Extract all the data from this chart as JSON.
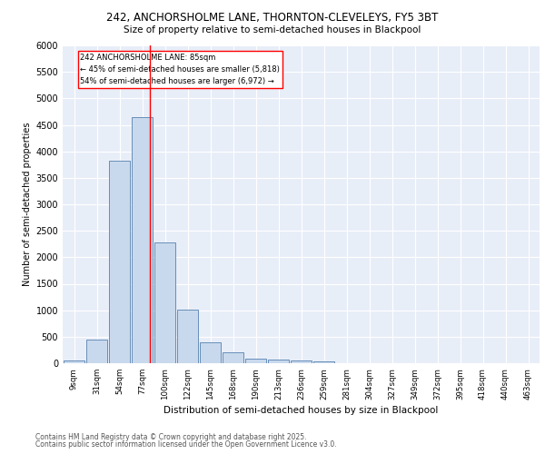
{
  "title_line1": "242, ANCHORSHOLME LANE, THORNTON-CLEVELEYS, FY5 3BT",
  "title_line2": "Size of property relative to semi-detached houses in Blackpool",
  "xlabel": "Distribution of semi-detached houses by size in Blackpool",
  "ylabel": "Number of semi-detached properties",
  "bar_labels": [
    "9sqm",
    "31sqm",
    "54sqm",
    "77sqm",
    "100sqm",
    "122sqm",
    "145sqm",
    "168sqm",
    "190sqm",
    "213sqm",
    "236sqm",
    "259sqm",
    "281sqm",
    "304sqm",
    "327sqm",
    "349sqm",
    "372sqm",
    "395sqm",
    "418sqm",
    "440sqm",
    "463sqm"
  ],
  "bar_values": [
    50,
    450,
    3820,
    4650,
    2280,
    1010,
    400,
    205,
    90,
    75,
    50,
    40,
    0,
    0,
    0,
    0,
    0,
    0,
    0,
    0,
    0
  ],
  "bar_color": "#c9d9ed",
  "bar_edge_color": "#5580b0",
  "background_color": "#e8eef8",
  "grid_color": "#ffffff",
  "vline_color": "red",
  "vline_pos": 3.35,
  "annotation_text": "242 ANCHORSHOLME LANE: 85sqm\n← 45% of semi-detached houses are smaller (5,818)\n54% of semi-detached houses are larger (6,972) →",
  "annotation_box_color": "white",
  "annotation_box_edge": "red",
  "ylim": [
    0,
    6000
  ],
  "yticks": [
    0,
    500,
    1000,
    1500,
    2000,
    2500,
    3000,
    3500,
    4000,
    4500,
    5000,
    5500,
    6000
  ],
  "footer_line1": "Contains HM Land Registry data © Crown copyright and database right 2025.",
  "footer_line2": "Contains public sector information licensed under the Open Government Licence v3.0."
}
